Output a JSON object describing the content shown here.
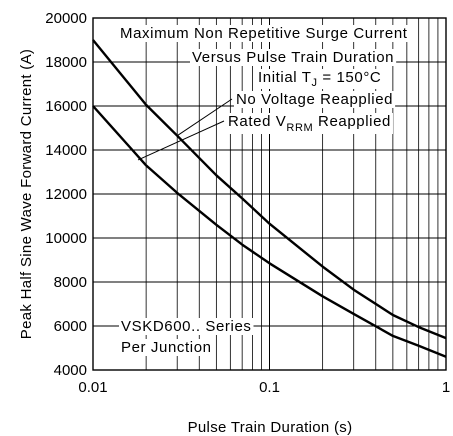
{
  "chart_data": {
    "type": "line",
    "xlabel": "Pulse Train Duration (s)",
    "ylabel": "Peak Half Sine Wave Forward Current (A)",
    "x_scale": "log",
    "xlim": [
      0.01,
      1
    ],
    "ylim": [
      4000,
      20000
    ],
    "grid": true,
    "x_ticks": [
      "0.01",
      "0.1",
      "1"
    ],
    "y_ticks": [
      "4000",
      "6000",
      "8000",
      "10000",
      "12000",
      "14000",
      "16000",
      "18000",
      "20000"
    ],
    "series": [
      {
        "name": "No Voltage Reapplied",
        "x": [
          0.01,
          0.02,
          0.03,
          0.05,
          0.07,
          0.1,
          0.2,
          0.3,
          0.5,
          0.7,
          1.0
        ],
        "y": [
          19000,
          16050,
          14650,
          12850,
          11800,
          10650,
          8700,
          7650,
          6500,
          5950,
          5450
        ]
      },
      {
        "name": "Rated V_RRM Reapplied",
        "x": [
          0.01,
          0.02,
          0.03,
          0.05,
          0.07,
          0.1,
          0.2,
          0.3,
          0.5,
          0.7,
          1.0
        ],
        "y": [
          16000,
          13300,
          12050,
          10600,
          9700,
          8850,
          7350,
          6550,
          5550,
          5100,
          4600
        ]
      }
    ],
    "annotations": {
      "title_line1": "Maximum Non Repetitive Surge Current",
      "title_line2": "Versus Pulse Train Duration",
      "condition_prefix": "Initial T",
      "condition_sub": "J",
      "condition_value": " = 150°C",
      "label_no_voltage": "No Voltage Reapplied",
      "label_rated_prefix": "Rated V",
      "label_rated_sub": "RRM",
      "label_rated_suffix": " Reapplied",
      "series_line1": "VSKD600.. Series",
      "series_line2": "Per Junction"
    },
    "colors": {
      "curve": "#000000",
      "grid": "#000000",
      "background": "#ffffff"
    }
  }
}
